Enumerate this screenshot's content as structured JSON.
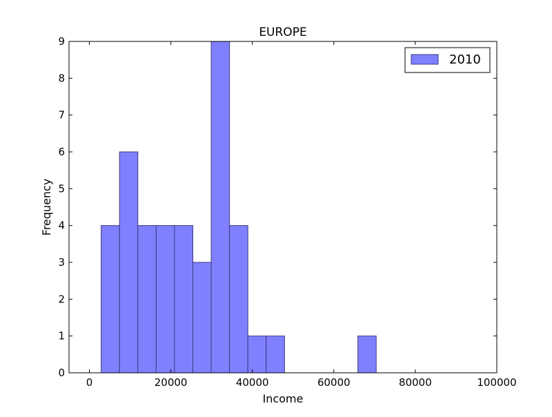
{
  "chart_data": {
    "type": "bar",
    "title": "EUROPE",
    "xlabel": "Income",
    "ylabel": "Frequency",
    "xlim": [
      -5000,
      100000
    ],
    "ylim": [
      0,
      9
    ],
    "xticks": [
      0,
      20000,
      40000,
      60000,
      80000,
      100000
    ],
    "xtick_labels": [
      "0",
      "20000",
      "40000",
      "60000",
      "80000",
      "100000"
    ],
    "yticks": [
      0,
      1,
      2,
      3,
      4,
      5,
      6,
      7,
      8,
      9
    ],
    "ytick_labels": [
      "0",
      "1",
      "2",
      "3",
      "4",
      "5",
      "6",
      "7",
      "8",
      "9"
    ],
    "grid": false,
    "legend_position": "top-right",
    "series": [
      {
        "name": "2010",
        "color": "#8080ff",
        "edge_color": "#3a3a80",
        "bins": [
          {
            "start": 2900,
            "end": 7400,
            "count": 4
          },
          {
            "start": 7400,
            "end": 11900,
            "count": 6
          },
          {
            "start": 11900,
            "end": 16400,
            "count": 4
          },
          {
            "start": 16400,
            "end": 20900,
            "count": 4
          },
          {
            "start": 20900,
            "end": 25400,
            "count": 4
          },
          {
            "start": 25400,
            "end": 29900,
            "count": 3
          },
          {
            "start": 29900,
            "end": 34400,
            "count": 9
          },
          {
            "start": 34400,
            "end": 38900,
            "count": 4
          },
          {
            "start": 38900,
            "end": 43400,
            "count": 1
          },
          {
            "start": 43400,
            "end": 47900,
            "count": 1
          },
          {
            "start": 47900,
            "end": 52400,
            "count": 0
          },
          {
            "start": 52400,
            "end": 56900,
            "count": 0
          },
          {
            "start": 56900,
            "end": 61400,
            "count": 0
          },
          {
            "start": 61400,
            "end": 65900,
            "count": 0
          },
          {
            "start": 65900,
            "end": 70400,
            "count": 1
          }
        ]
      }
    ]
  }
}
